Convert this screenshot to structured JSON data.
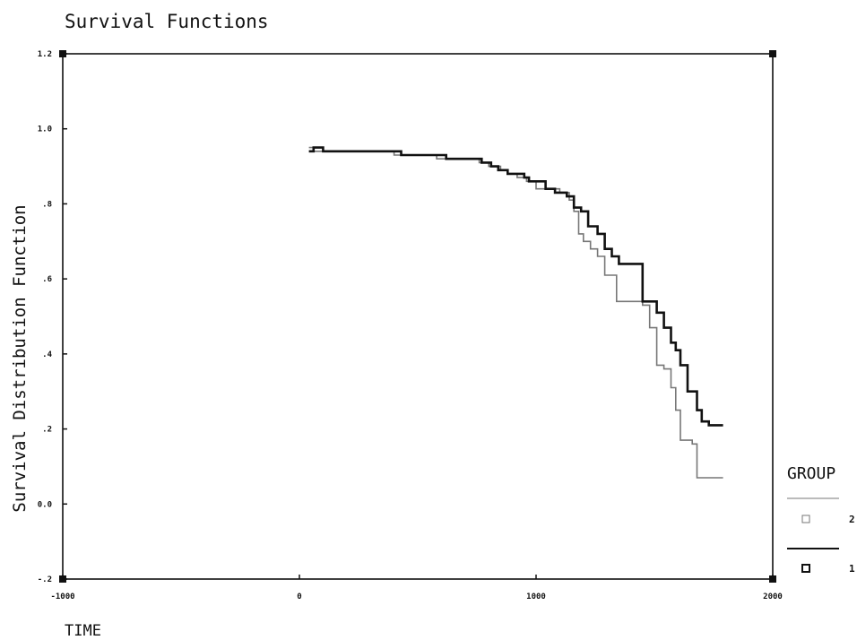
{
  "chart_data": {
    "type": "line",
    "title": "Survival Functions",
    "xlabel": "TIME",
    "ylabel": "Survival Distribution Function",
    "xlim": [
      -1000,
      2000
    ],
    "ylim": [
      -0.2,
      1.2
    ],
    "x_ticks": [
      -1000,
      0,
      1000,
      2000
    ],
    "x_tick_labels": [
      "-1000",
      "0",
      "1000",
      "2000"
    ],
    "y_ticks": [
      1.2,
      1.0,
      0.8,
      0.6,
      0.4,
      0.2,
      0.0,
      -0.2
    ],
    "y_tick_labels": [
      "1.2",
      "1.0",
      ".8",
      ".6",
      ".4",
      ".2",
      "0.0",
      "-.2"
    ],
    "grid": false,
    "legend": {
      "title": "GROUP",
      "placement": "right"
    },
    "series": [
      {
        "name": "2",
        "color": "#777777",
        "points": [
          [
            40,
            0.95
          ],
          [
            60,
            0.94
          ],
          [
            130,
            0.94
          ],
          [
            380,
            0.94
          ],
          [
            400,
            0.93
          ],
          [
            560,
            0.93
          ],
          [
            580,
            0.92
          ],
          [
            720,
            0.92
          ],
          [
            760,
            0.91
          ],
          [
            800,
            0.9
          ],
          [
            850,
            0.89
          ],
          [
            880,
            0.88
          ],
          [
            920,
            0.87
          ],
          [
            960,
            0.86
          ],
          [
            1000,
            0.84
          ],
          [
            1080,
            0.84
          ],
          [
            1100,
            0.83
          ],
          [
            1140,
            0.81
          ],
          [
            1160,
            0.78
          ],
          [
            1180,
            0.72
          ],
          [
            1200,
            0.7
          ],
          [
            1230,
            0.68
          ],
          [
            1260,
            0.66
          ],
          [
            1290,
            0.61
          ],
          [
            1340,
            0.54
          ],
          [
            1420,
            0.54
          ],
          [
            1450,
            0.53
          ],
          [
            1480,
            0.47
          ],
          [
            1510,
            0.37
          ],
          [
            1540,
            0.36
          ],
          [
            1570,
            0.31
          ],
          [
            1590,
            0.25
          ],
          [
            1610,
            0.17
          ],
          [
            1660,
            0.16
          ],
          [
            1680,
            0.07
          ],
          [
            1790,
            0.07
          ]
        ]
      },
      {
        "name": "1",
        "color": "#111111",
        "points": [
          [
            40,
            0.94
          ],
          [
            60,
            0.95
          ],
          [
            100,
            0.94
          ],
          [
            400,
            0.94
          ],
          [
            430,
            0.93
          ],
          [
            610,
            0.93
          ],
          [
            620,
            0.92
          ],
          [
            730,
            0.92
          ],
          [
            770,
            0.91
          ],
          [
            810,
            0.9
          ],
          [
            840,
            0.89
          ],
          [
            880,
            0.88
          ],
          [
            950,
            0.87
          ],
          [
            970,
            0.86
          ],
          [
            1040,
            0.84
          ],
          [
            1080,
            0.83
          ],
          [
            1130,
            0.82
          ],
          [
            1160,
            0.79
          ],
          [
            1190,
            0.78
          ],
          [
            1220,
            0.74
          ],
          [
            1260,
            0.72
          ],
          [
            1290,
            0.68
          ],
          [
            1320,
            0.66
          ],
          [
            1350,
            0.64
          ],
          [
            1410,
            0.64
          ],
          [
            1450,
            0.54
          ],
          [
            1490,
            0.54
          ],
          [
            1510,
            0.51
          ],
          [
            1540,
            0.47
          ],
          [
            1570,
            0.43
          ],
          [
            1590,
            0.41
          ],
          [
            1610,
            0.37
          ],
          [
            1640,
            0.3
          ],
          [
            1680,
            0.25
          ],
          [
            1700,
            0.22
          ],
          [
            1730,
            0.21
          ],
          [
            1790,
            0.21
          ]
        ]
      }
    ],
    "legend_entries": [
      {
        "label": "2",
        "color": "#777777"
      },
      {
        "label": "1",
        "color": "#111111"
      }
    ]
  }
}
